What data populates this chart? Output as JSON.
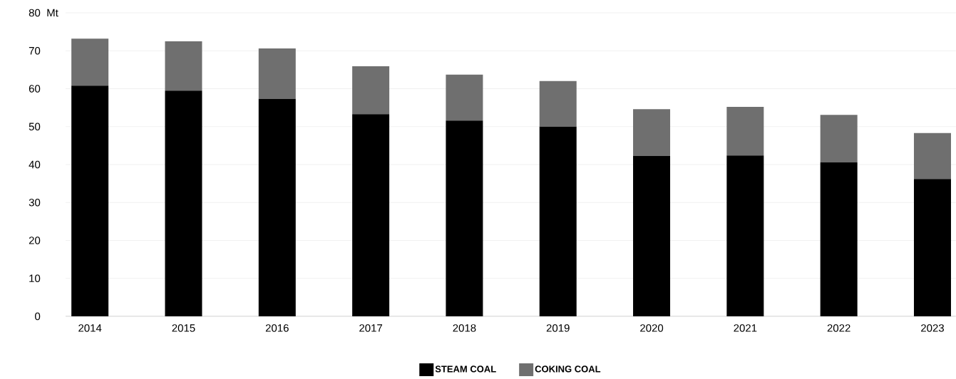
{
  "chart_data": {
    "type": "bar",
    "stacked": true,
    "ylabel": "Mt",
    "categories": [
      "2014",
      "2015",
      "2016",
      "2017",
      "2018",
      "2019",
      "2020",
      "2021",
      "2022",
      "2023"
    ],
    "series": [
      {
        "name": "STEAM COAL",
        "color": "#000000",
        "values": [
          60.8,
          59.5,
          57.3,
          53.3,
          51.6,
          50.0,
          42.3,
          42.4,
          40.6,
          36.2
        ]
      },
      {
        "name": "COKING COAL",
        "color": "#6f6f6f",
        "values": [
          12.4,
          13.0,
          13.3,
          12.6,
          12.1,
          12.0,
          12.3,
          12.8,
          12.5,
          12.1
        ]
      }
    ],
    "ylim": [
      0,
      80
    ],
    "yticks": [
      0,
      10,
      20,
      30,
      40,
      50,
      60,
      70,
      80
    ],
    "grid": "y",
    "legend": "bottom"
  }
}
